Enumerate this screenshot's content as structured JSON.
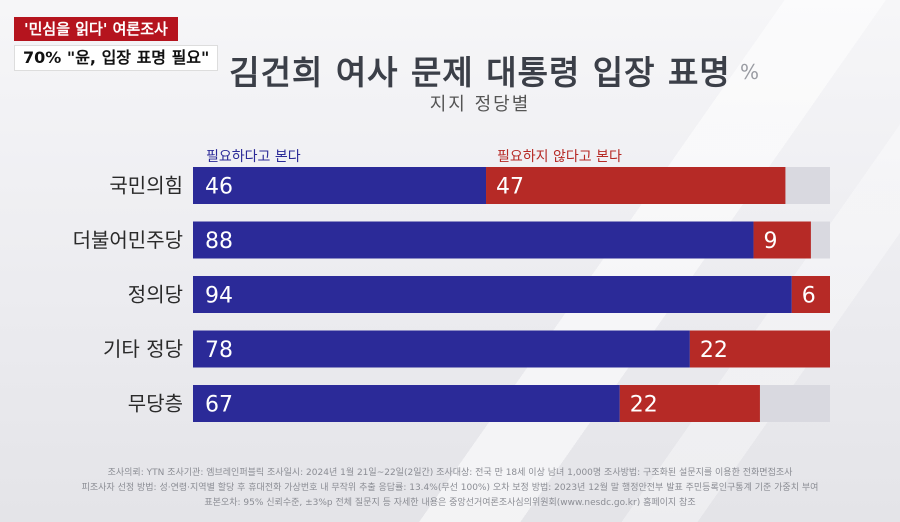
{
  "badges": {
    "top": "'민심을 읽다' 여론조사",
    "bottom": "70% \"윤, 입장 표명 필요\""
  },
  "header": {
    "title": "김건희 여사 문제 대통령 입장 표명",
    "unit": "%",
    "subtitle": "지지 정당별"
  },
  "colors": {
    "positive": "#2b2a98",
    "negative": "#b62a26",
    "remainder": "#d9d9e0"
  },
  "chart_data": {
    "type": "bar",
    "orientation": "horizontal",
    "stacked": true,
    "xlim": [
      0,
      100
    ],
    "categories": [
      "국민의힘",
      "더불어민주당",
      "정의당",
      "기타 정당",
      "무당층"
    ],
    "series": [
      {
        "name": "필요하다고 본다",
        "values": [
          46,
          88,
          94,
          78,
          67
        ]
      },
      {
        "name": "필요하지 않다고 본다",
        "values": [
          47,
          9,
          6,
          22,
          22
        ]
      }
    ]
  },
  "footer": {
    "line1": "조사의뢰: YTN     조사기관: 엠브레인퍼블릭     조사일시: 2024년 1월 21일~22일(2일간)     조사대상: 전국 만 18세 이상 남녀 1,000명     조사방법: 구조화된 설문지를 이용한 전화면접조사",
    "line2": "피조사자 선정 방법: 성·연령·지역별 할당 후 휴대전화 가상번호 내 무작위 추출     응답률: 13.4%(무선 100%)     오차 보정 방법: 2023년 12월 말 행정안전부 발표 주민등록인구통계 기준 가중치 부여",
    "line3": "표본오차: 95% 신뢰수준, ±3%p     전체 질문지 등 자세한 내용은 중앙선거여론조사심의위원회(www.nesdc.go.kr) 홈페이지 참조"
  }
}
